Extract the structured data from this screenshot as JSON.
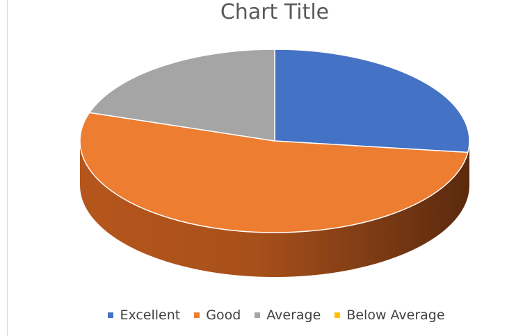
{
  "chart_data": {
    "type": "pie",
    "title": "Chart Title",
    "categories": [
      "Excellent",
      "Good",
      "Average",
      "Below Average"
    ],
    "values": [
      27,
      53,
      20,
      0
    ],
    "colors": [
      "#4472c4",
      "#ed7d31",
      "#a5a5a5",
      "#ffc000"
    ],
    "legend_position": "bottom",
    "style": "3d"
  }
}
